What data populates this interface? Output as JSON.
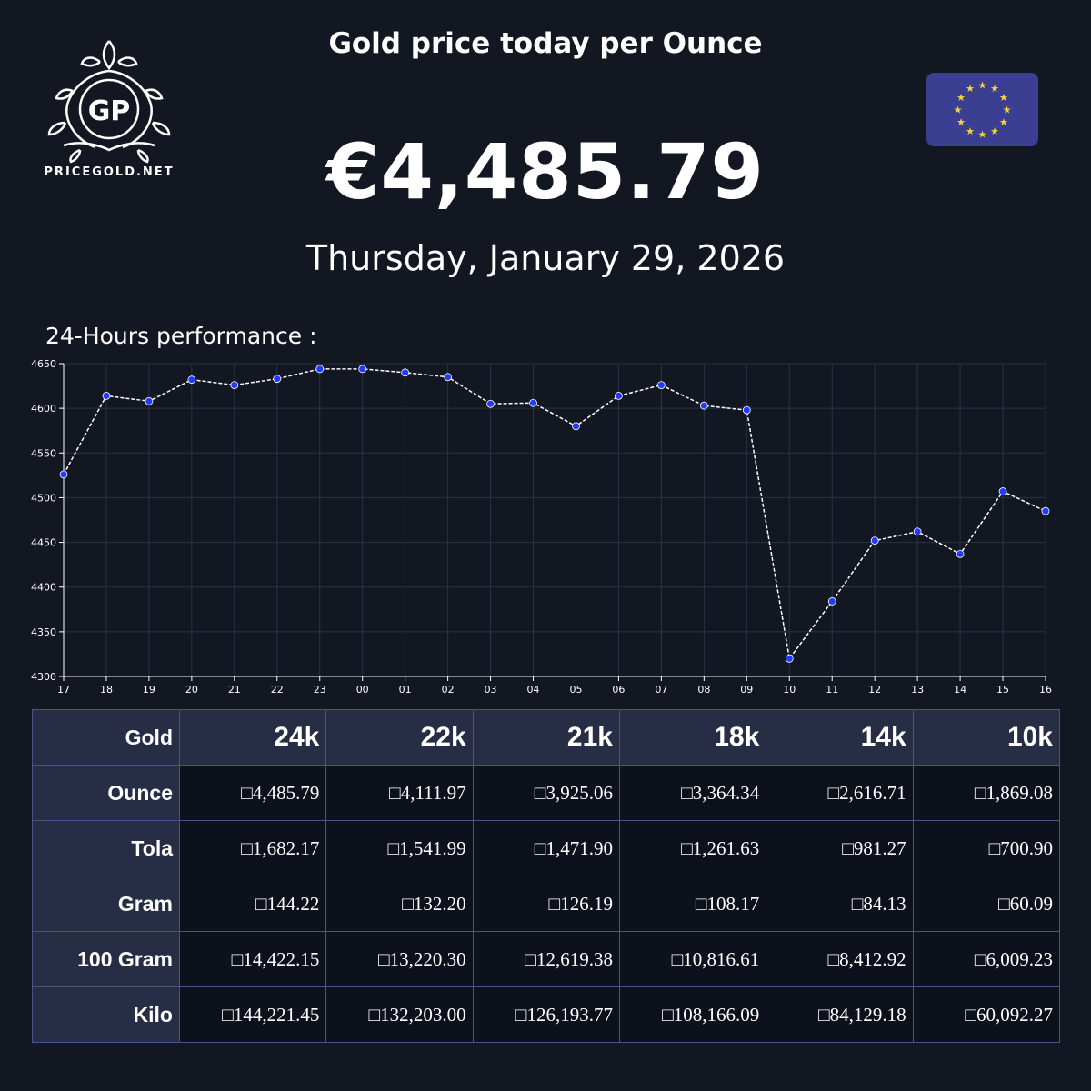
{
  "brand": {
    "logo_initials": "GP",
    "logo_text": "PRICEGOLD.NET"
  },
  "header": {
    "title": "Gold price today per Ounce",
    "price": "€4,485.79",
    "date": "Thursday, January 29, 2026"
  },
  "flag": {
    "name": "eu-flag-icon",
    "background": "#3a3f91",
    "star_color": "#f7d23a",
    "stars": 12
  },
  "performance_label": "24-Hours performance :",
  "chart_data": {
    "type": "line",
    "x": [
      "17",
      "18",
      "19",
      "20",
      "21",
      "22",
      "23",
      "00",
      "01",
      "02",
      "03",
      "04",
      "05",
      "06",
      "07",
      "08",
      "09",
      "10",
      "11",
      "12",
      "13",
      "14",
      "15",
      "16"
    ],
    "values": [
      4526,
      4614,
      4608,
      4632,
      4626,
      4633,
      4644,
      4644,
      4640,
      4635,
      4605,
      4606,
      4580,
      4614,
      4626,
      4603,
      4598,
      4320,
      4384,
      4452,
      4462,
      4437,
      4507,
      4485
    ],
    "ylim": [
      4300,
      4650
    ],
    "yticks": [
      4300,
      4350,
      4400,
      4450,
      4500,
      4550,
      4600,
      4650
    ],
    "grid": true,
    "line_color": "#ffffff",
    "marker_color": "#1f3cff",
    "title": "",
    "xlabel": "",
    "ylabel": ""
  },
  "table": {
    "corner": "Gold",
    "columns": [
      "24k",
      "22k",
      "21k",
      "18k",
      "14k",
      "10k"
    ],
    "rows": [
      {
        "label": "Ounce",
        "values": [
          "4,485.79",
          "4,111.97",
          "3,925.06",
          "3,364.34",
          "2,616.71",
          "1,869.08"
        ]
      },
      {
        "label": "Tola",
        "values": [
          "1,682.17",
          "1,541.99",
          "1,471.90",
          "1,261.63",
          "981.27",
          "700.90"
        ]
      },
      {
        "label": "Gram",
        "values": [
          "144.22",
          "132.20",
          "126.19",
          "108.17",
          "84.13",
          "60.09"
        ]
      },
      {
        "label": "100 Gram",
        "values": [
          "14,422.15",
          "13,220.30",
          "12,619.38",
          "10,816.61",
          "8,412.92",
          "6,009.23"
        ]
      },
      {
        "label": "Kilo",
        "values": [
          "144,221.45",
          "132,203.00",
          "126,193.77",
          "108,166.09",
          "84,129.18",
          "60,092.27"
        ]
      }
    ]
  }
}
